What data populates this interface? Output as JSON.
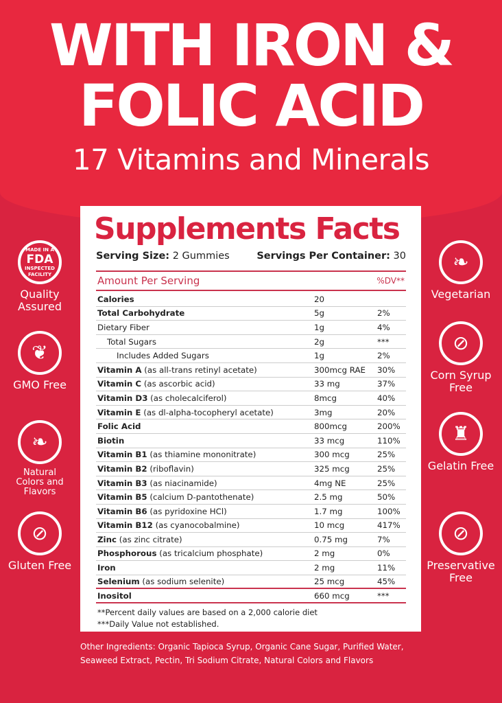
{
  "headline": {
    "line1": "WITH IRON &",
    "line2": "FOLIC ACID",
    "sub": "17 Vitamins and Minerals"
  },
  "facts": {
    "title": "Supplements Facts",
    "serving_size_label": "Serving Size:",
    "serving_size": "2 Gummies",
    "servings_label": "Servings Per Container:",
    "servings": "30",
    "amount_label": "Amount Per Serving",
    "dv_label": "%DV**",
    "rows": [
      {
        "name": "Calories",
        "detail": "",
        "amount": "20",
        "dv": "",
        "bold": true,
        "indent": 0
      },
      {
        "name": "Total Carbohydrate",
        "detail": "",
        "amount": "5g",
        "dv": "2%",
        "bold": true,
        "indent": 0
      },
      {
        "name": "Dietary Fiber",
        "detail": "",
        "amount": "1g",
        "dv": "4%",
        "bold": false,
        "indent": 0
      },
      {
        "name": "Total Sugars",
        "detail": "",
        "amount": "2g",
        "dv": "***",
        "bold": false,
        "indent": 1
      },
      {
        "name": "Includes Added Sugars",
        "detail": "",
        "amount": "1g",
        "dv": "2%",
        "bold": false,
        "indent": 2
      },
      {
        "name": "Vitamin A",
        "detail": "(as all-trans retinyl acetate)",
        "amount": "300mcg RAE",
        "dv": "30%",
        "bold": true,
        "indent": 0
      },
      {
        "name": "Vitamin C",
        "detail": "(as ascorbic acid)",
        "amount": "33 mg",
        "dv": "37%",
        "bold": true,
        "indent": 0
      },
      {
        "name": "Vitamin D3",
        "detail": "(as cholecalciferol)",
        "amount": "8mcg",
        "dv": "40%",
        "bold": true,
        "indent": 0
      },
      {
        "name": "Vitamin E",
        "detail": "(as dl-alpha-tocopheryl acetate)",
        "amount": "3mg",
        "dv": "20%",
        "bold": true,
        "indent": 0
      },
      {
        "name": "Folic Acid",
        "detail": "",
        "amount": "800mcg",
        "dv": "200%",
        "bold": true,
        "indent": 0
      },
      {
        "name": "Biotin",
        "detail": "",
        "amount": "33 mcg",
        "dv": "110%",
        "bold": true,
        "indent": 0
      },
      {
        "name": "Vitamin B1",
        "detail": "(as thiamine mononitrate)",
        "amount": "300 mcg",
        "dv": "25%",
        "bold": true,
        "indent": 0
      },
      {
        "name": "Vitamin B2",
        "detail": "(riboflavin)",
        "amount": "325 mcg",
        "dv": "25%",
        "bold": true,
        "indent": 0
      },
      {
        "name": "Vitamin B3",
        "detail": "(as niacinamide)",
        "amount": "4mg NE",
        "dv": "25%",
        "bold": true,
        "indent": 0
      },
      {
        "name": "Vitamin B5",
        "detail": "(calcium D-pantothenate)",
        "amount": "2.5 mg",
        "dv": "50%",
        "bold": true,
        "indent": 0
      },
      {
        "name": "Vitamin B6",
        "detail": "(as pyridoxine HCl)",
        "amount": "1.7 mg",
        "dv": "100%",
        "bold": true,
        "indent": 0
      },
      {
        "name": "Vitamin B12",
        "detail": "(as cyanocobalmine)",
        "amount": "10 mcg",
        "dv": "417%",
        "bold": true,
        "indent": 0
      },
      {
        "name": "Zinc",
        "detail": "(as zinc citrate)",
        "amount": "0.75 mg",
        "dv": "7%",
        "bold": true,
        "indent": 0
      },
      {
        "name": "Phosphorous",
        "detail": "(as tricalcium phosphate)",
        "amount": "2 mg",
        "dv": "0%",
        "bold": true,
        "indent": 0
      },
      {
        "name": "Iron",
        "detail": "",
        "amount": "2 mg",
        "dv": "11%",
        "bold": true,
        "indent": 0
      },
      {
        "name": "Selenium",
        "detail": "(as sodium selenite)",
        "amount": "25 mcg",
        "dv": "45%",
        "bold": true,
        "indent": 0
      },
      {
        "name": "Inositol",
        "detail": "",
        "amount": "660 mcg",
        "dv": "***",
        "bold": true,
        "indent": 0
      }
    ],
    "footnote1": "**Percent daily values are based on a 2,000 calorie diet",
    "footnote2": "***Daily Value not established."
  },
  "other_ingredients": "Other Ingredients: Organic Tapioca Syrup, Organic Cane Sugar, Purified Water, Seaweed Extract, Pectin, Tri Sodium Citrate, Natural Colors and Flavors",
  "left_badges": [
    {
      "icon": "fda-seal-icon",
      "seal_text": "MADE IN A FDA INSPECTED FACILITY",
      "label": "Quality Assured"
    },
    {
      "icon": "sprout-icon",
      "label": "GMO Free"
    },
    {
      "icon": "leaf-icon",
      "label": "Natural Colors and Flavors"
    },
    {
      "icon": "no-wheat-icon",
      "label": "Gluten Free"
    }
  ],
  "right_badges": [
    {
      "icon": "leaf-icon",
      "label": "Vegetarian"
    },
    {
      "icon": "no-corn-icon",
      "label": "Corn Syrup Free"
    },
    {
      "icon": "jelly-icon",
      "label": "Gelatin Free"
    },
    {
      "icon": "no-flask-icon",
      "label": "Preservative Free"
    }
  ],
  "colors": {
    "brand_red": "#e8283f",
    "dark_red": "#d92340",
    "rule_red": "#c9324d"
  }
}
